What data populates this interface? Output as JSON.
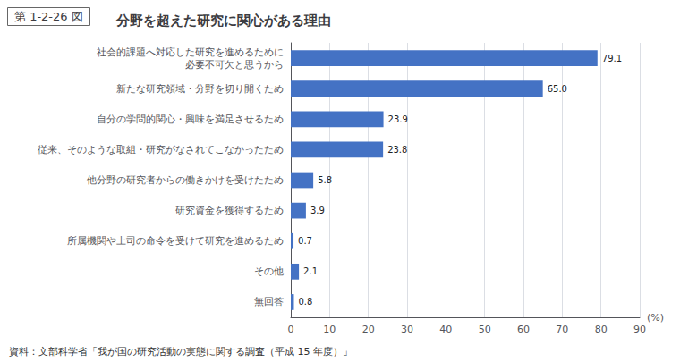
{
  "chart_data": {
    "type": "bar",
    "orientation": "horizontal",
    "title": "分野を超えた研究に関心がある理由",
    "annotations": [
      "第 1-2-26 図",
      "資料：文部科学省「我が国の研究活動の実態に関する調査（平成 15 年度）」"
    ],
    "categories": [
      "社会的課題へ対応した研究を進めるために\n必要不可欠と思うから",
      "新たな研究領域・分野を切り開くため",
      "自分の学問的関心・興味を満足させるため",
      "従来、そのような取組・研究がなされてこなかったため",
      "他分野の研究者からの働きかけを受けたため",
      "研究資金を獲得するため",
      "所属機関や上司の命令を受けて研究を進めるため",
      "その他",
      "無回答"
    ],
    "values": [
      79.1,
      65.0,
      23.9,
      23.8,
      5.8,
      3.9,
      0.7,
      2.1,
      0.8
    ],
    "value_labels": [
      "79.1",
      "65.0",
      "23.9",
      "23.8",
      "5.8",
      "3.9",
      "0.7",
      "2.1",
      "0.8"
    ],
    "data_labels": true,
    "color": "#4472c4",
    "xlabel": "(%)",
    "xlim": [
      0,
      90
    ],
    "xticks": [
      0,
      10,
      20,
      30,
      40,
      50,
      60,
      70,
      80,
      90
    ],
    "grid": true
  }
}
